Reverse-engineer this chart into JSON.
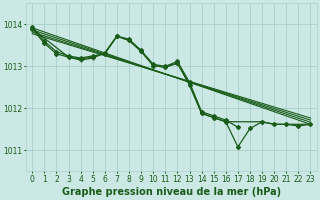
{
  "background_color": "#cce8e4",
  "grid_color": "#aad0cc",
  "line_color": "#1a5c1a",
  "xlabel": "Graphe pression niveau de la mer (hPa)",
  "xlabel_fontsize": 7,
  "tick_fontsize": 5.5,
  "ylim": [
    1010.5,
    1014.5
  ],
  "xlim": [
    -0.5,
    23.5
  ],
  "yticks": [
    1011,
    1012,
    1013,
    1014
  ],
  "xticks": [
    0,
    1,
    2,
    3,
    4,
    5,
    6,
    7,
    8,
    9,
    10,
    11,
    12,
    13,
    14,
    15,
    16,
    17,
    18,
    19,
    20,
    21,
    22,
    23
  ],
  "line1_x": [
    0,
    1,
    2,
    3,
    4,
    5,
    6,
    7,
    8,
    9,
    10,
    11,
    12,
    13,
    14,
    15,
    16,
    17
  ],
  "line1_y": [
    1013.95,
    1013.6,
    1013.35,
    1013.25,
    1013.2,
    1013.25,
    1013.3,
    1013.72,
    1013.65,
    1013.38,
    1013.05,
    1013.0,
    1013.12,
    1012.62,
    1011.92,
    1011.82,
    1011.72,
    1011.55
  ],
  "line2_x": [
    0,
    1,
    2,
    3,
    4,
    5,
    6,
    7,
    8,
    9,
    10,
    11,
    12,
    13,
    14,
    15,
    16,
    17,
    18,
    19,
    20,
    21,
    22,
    23
  ],
  "line2_y": [
    1013.9,
    1013.55,
    1013.3,
    1013.22,
    1013.18,
    1013.22,
    1013.32,
    1013.72,
    1013.62,
    1013.36,
    1013.02,
    1012.98,
    1013.08,
    1012.56,
    1011.88,
    1011.78,
    1011.68,
    1011.08,
    1011.52,
    1011.68,
    1011.62,
    1011.62,
    1011.58,
    1011.62
  ],
  "line3_x": [
    0,
    3,
    4,
    5,
    6,
    7,
    8,
    9,
    10,
    11,
    12,
    13,
    14,
    15,
    16,
    19,
    20,
    21,
    23
  ],
  "line3_y": [
    1013.9,
    1013.22,
    1013.15,
    1013.2,
    1013.32,
    1013.72,
    1013.62,
    1013.36,
    1013.02,
    1012.98,
    1013.08,
    1012.56,
    1011.88,
    1011.78,
    1011.68,
    1011.68,
    1011.62,
    1011.62,
    1011.62
  ],
  "diag1": {
    "x": [
      0,
      23
    ],
    "y": [
      1013.92,
      1011.62
    ]
  },
  "diag2": {
    "x": [
      0,
      23
    ],
    "y": [
      1013.87,
      1011.67
    ]
  },
  "diag3": {
    "x": [
      0,
      23
    ],
    "y": [
      1013.82,
      1011.72
    ]
  },
  "diag4": {
    "x": [
      0,
      23
    ],
    "y": [
      1013.78,
      1011.77
    ]
  }
}
